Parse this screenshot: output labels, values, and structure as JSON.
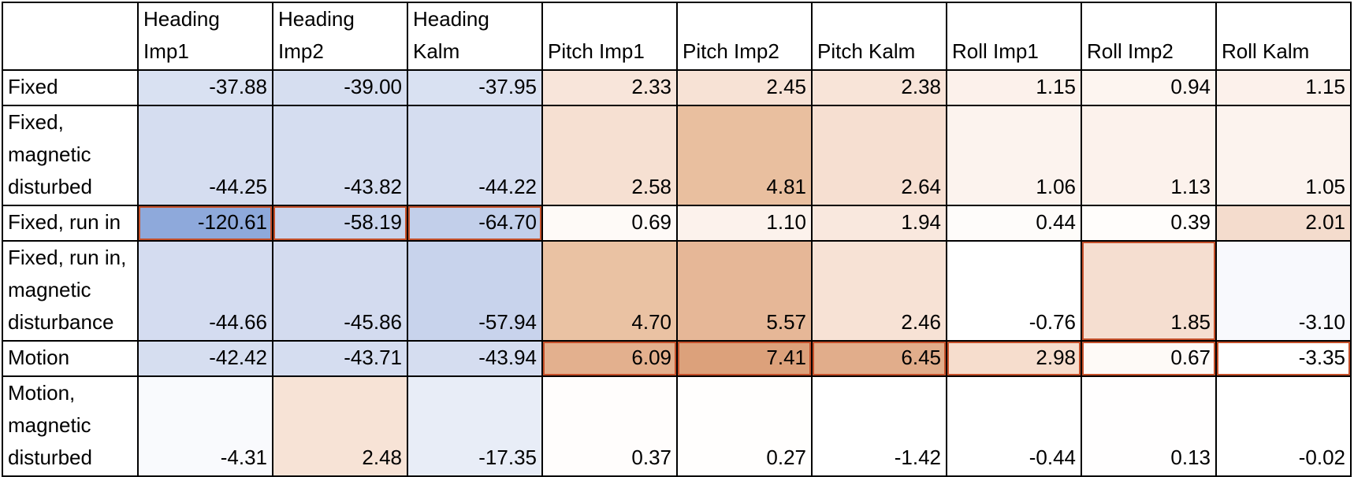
{
  "table": {
    "columns": [
      "",
      "Heading Imp1",
      "Heading Imp2",
      "Heading Kalm",
      "Pitch Imp1",
      "Pitch Imp2",
      "Pitch Kalm",
      "Roll Imp1",
      "Roll Imp2",
      "Roll Kalm"
    ],
    "rows": [
      {
        "label": "Fixed",
        "cells": [
          {
            "value": "-37.88",
            "bg": "#d9e1f2"
          },
          {
            "value": "-39.00",
            "bg": "#d6def0"
          },
          {
            "value": "-37.95",
            "bg": "#d9e1f2"
          },
          {
            "value": "2.33",
            "bg": "#f8e5da"
          },
          {
            "value": "2.45",
            "bg": "#f7e2d5"
          },
          {
            "value": "2.38",
            "bg": "#f8e4d8"
          },
          {
            "value": "1.15",
            "bg": "#fcf1eb"
          },
          {
            "value": "0.94",
            "bg": "#fdf5f0"
          },
          {
            "value": "1.15",
            "bg": "#fcf1eb"
          }
        ]
      },
      {
        "label": "Fixed, magnetic disturbed",
        "cells": [
          {
            "value": "-44.25",
            "bg": "#d5ddf0"
          },
          {
            "value": "-43.82",
            "bg": "#d5ddf0"
          },
          {
            "value": "-44.22",
            "bg": "#d5ddf0"
          },
          {
            "value": "2.58",
            "bg": "#f6e0d2"
          },
          {
            "value": "4.81",
            "bg": "#e9bf9f"
          },
          {
            "value": "2.64",
            "bg": "#f6dfd1"
          },
          {
            "value": "1.06",
            "bg": "#fcf3ee"
          },
          {
            "value": "1.13",
            "bg": "#fcf2ec"
          },
          {
            "value": "1.05",
            "bg": "#fcf3ee"
          }
        ]
      },
      {
        "label": "Fixed, run in",
        "cells": [
          {
            "value": "-120.61",
            "bg": "#8ea9db",
            "hl": true
          },
          {
            "value": "-58.19",
            "bg": "#c9d4ec",
            "hl": true
          },
          {
            "value": "-64.70",
            "bg": "#c2cfea",
            "hl": true
          },
          {
            "value": "0.69",
            "bg": "#fefaf7"
          },
          {
            "value": "1.10",
            "bg": "#fcf2ec"
          },
          {
            "value": "1.94",
            "bg": "#f9e8de"
          },
          {
            "value": "0.44",
            "bg": "#fefcfa"
          },
          {
            "value": "0.39",
            "bg": "#fffdfb"
          },
          {
            "value": "2.01",
            "bg": "#f4dccd"
          }
        ]
      },
      {
        "label": "Fixed, run in, magnetic disturbance",
        "cells": [
          {
            "value": "-44.66",
            "bg": "#d4dcf0"
          },
          {
            "value": "-45.86",
            "bg": "#d3dbef"
          },
          {
            "value": "-57.94",
            "bg": "#c8d3ec"
          },
          {
            "value": "4.70",
            "bg": "#eac2a3"
          },
          {
            "value": "5.57",
            "bg": "#e6b797"
          },
          {
            "value": "2.46",
            "bg": "#f7e2d5"
          },
          {
            "value": "-0.76",
            "bg": "#ffffff"
          },
          {
            "value": "1.85",
            "bg": "#f5ded0",
            "hl": true
          },
          {
            "value": "-3.10",
            "bg": "#f8f9fd"
          }
        ]
      },
      {
        "label": "Motion",
        "cells": [
          {
            "value": "-42.42",
            "bg": "#d6def0"
          },
          {
            "value": "-43.71",
            "bg": "#d5ddf0"
          },
          {
            "value": "-43.94",
            "bg": "#d5ddf0"
          },
          {
            "value": "6.09",
            "bg": "#e3b08e",
            "hl": true
          },
          {
            "value": "7.41",
            "bg": "#dca17b",
            "hl": true
          },
          {
            "value": "6.45",
            "bg": "#e1ad8b",
            "hl": true
          },
          {
            "value": "2.98",
            "bg": "#f6ddcd",
            "hl": true
          },
          {
            "value": "0.67",
            "bg": "#fefaf7",
            "hl": true
          },
          {
            "value": "-3.35",
            "bg": "#ffffff",
            "hl": true
          }
        ]
      },
      {
        "label": "Motion, magnetic disturbed",
        "cells": [
          {
            "value": "-4.31",
            "bg": "#f9fafd"
          },
          {
            "value": "2.48",
            "bg": "#f7e3d6"
          },
          {
            "value": "-17.35",
            "bg": "#e8edf7"
          },
          {
            "value": "0.37",
            "bg": "#fffdfc"
          },
          {
            "value": "0.27",
            "bg": "#fffefd"
          },
          {
            "value": "-1.42",
            "bg": "#ffffff"
          },
          {
            "value": "-0.44",
            "bg": "#ffffff"
          },
          {
            "value": "0.13",
            "bg": "#fffefe"
          },
          {
            "value": "-0.02",
            "bg": "#ffffff"
          }
        ]
      }
    ]
  }
}
